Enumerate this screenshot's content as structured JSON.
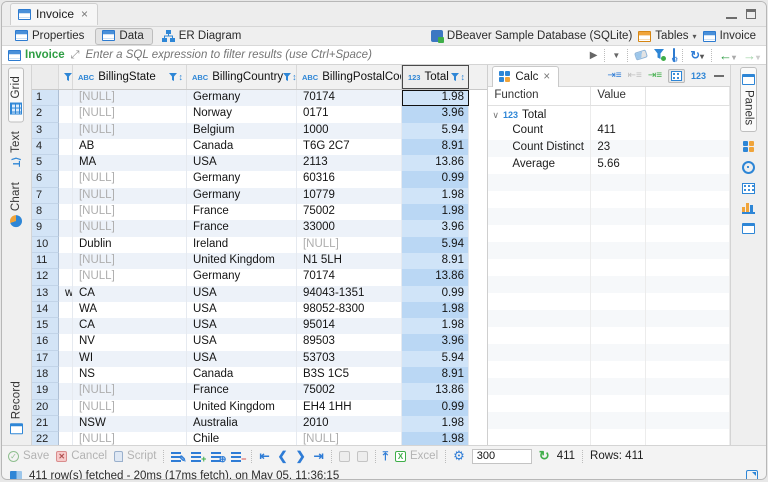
{
  "window": {
    "tab_title": "Invoice",
    "close_glyph": "×"
  },
  "subtabs": {
    "properties": "Properties",
    "data": "Data",
    "er_diagram": "ER Diagram",
    "connection": {
      "database": "DBeaver Sample Database (SQLite)",
      "tables_label": "Tables",
      "table_label": "Invoice"
    }
  },
  "filter_bar": {
    "table": "Invoice",
    "placeholder": "Enter a SQL expression to filter results (use Ctrl+Space)"
  },
  "side_tabs": {
    "grid": "Grid",
    "text": "Text",
    "chart": "Chart",
    "record": "Record"
  },
  "grid": {
    "columns": [
      {
        "name": "",
        "type": ""
      },
      {
        "name": "BillingState",
        "type": "ABC"
      },
      {
        "name": "BillingCountry",
        "type": "ABC"
      },
      {
        "name": "BillingPostalCode",
        "type": "ABC"
      },
      {
        "name": "Total",
        "type": "123",
        "selected": true
      }
    ],
    "rows": [
      {
        "n": "1",
        "pre": "",
        "cells": [
          "[NULL]",
          "Germany",
          "70174",
          "1.98"
        ],
        "focused_total": true
      },
      {
        "n": "2",
        "pre": "",
        "cells": [
          "[NULL]",
          "Norway",
          "0171",
          "3.96"
        ]
      },
      {
        "n": "3",
        "pre": "",
        "cells": [
          "[NULL]",
          "Belgium",
          "1000",
          "5.94"
        ]
      },
      {
        "n": "4",
        "pre": "",
        "cells": [
          "AB",
          "Canada",
          "T6G 2C7",
          "8.91"
        ]
      },
      {
        "n": "5",
        "pre": "",
        "cells": [
          "MA",
          "USA",
          "2113",
          "13.86"
        ]
      },
      {
        "n": "6",
        "pre": "",
        "cells": [
          "[NULL]",
          "Germany",
          "60316",
          "0.99"
        ]
      },
      {
        "n": "7",
        "pre": "",
        "cells": [
          "[NULL]",
          "Germany",
          "10779",
          "1.98"
        ]
      },
      {
        "n": "8",
        "pre": "",
        "cells": [
          "[NULL]",
          "France",
          "75002",
          "1.98"
        ]
      },
      {
        "n": "9",
        "pre": "",
        "cells": [
          "[NULL]",
          "France",
          "33000",
          "3.96"
        ]
      },
      {
        "n": "10",
        "pre": "",
        "cells": [
          "Dublin",
          "Ireland",
          "[NULL]",
          "5.94"
        ]
      },
      {
        "n": "11",
        "pre": "",
        "cells": [
          "[NULL]",
          "United Kingdom",
          "N1 5LH",
          "8.91"
        ]
      },
      {
        "n": "12",
        "pre": "",
        "cells": [
          "[NULL]",
          "Germany",
          "70174",
          "13.86"
        ]
      },
      {
        "n": "13",
        "pre": "w",
        "cells": [
          "CA",
          "USA",
          "94043-1351",
          "0.99"
        ]
      },
      {
        "n": "14",
        "pre": "",
        "cells": [
          "WA",
          "USA",
          "98052-8300",
          "1.98"
        ]
      },
      {
        "n": "15",
        "pre": "",
        "cells": [
          "CA",
          "USA",
          "95014",
          "1.98"
        ]
      },
      {
        "n": "16",
        "pre": "",
        "cells": [
          "NV",
          "USA",
          "89503",
          "3.96"
        ]
      },
      {
        "n": "17",
        "pre": "",
        "cells": [
          "WI",
          "USA",
          "53703",
          "5.94"
        ]
      },
      {
        "n": "18",
        "pre": "",
        "cells": [
          "NS",
          "Canada",
          "B3S 1C5",
          "8.91"
        ]
      },
      {
        "n": "19",
        "pre": "",
        "cells": [
          "[NULL]",
          "France",
          "75002",
          "13.86"
        ]
      },
      {
        "n": "20",
        "pre": "",
        "cells": [
          "[NULL]",
          "United Kingdom",
          "EH4 1HH",
          "0.99"
        ]
      },
      {
        "n": "21",
        "pre": "",
        "cells": [
          "NSW",
          "Australia",
          "2010",
          "1.98"
        ]
      },
      {
        "n": "22",
        "pre": "",
        "cells": [
          "[NULL]",
          "Chile",
          "[NULL]",
          "1.98"
        ]
      }
    ],
    "null_text": "[NULL]"
  },
  "calc_panel": {
    "tab": "Calc",
    "close_glyph": "×",
    "toolbar_123": "123",
    "columns": [
      "Function",
      "Value"
    ],
    "group": {
      "type": "123",
      "label": "Total"
    },
    "rows": [
      {
        "function": "Count",
        "value": "411"
      },
      {
        "function": "Count Distinct",
        "value": "23"
      },
      {
        "function": "Average",
        "value": "5.66"
      }
    ]
  },
  "panels_strip": {
    "label": "Panels"
  },
  "toolbar": {
    "save": "Save",
    "cancel": "Cancel",
    "script": "Script",
    "excel": "Excel",
    "fetch_size": "300",
    "refresh_count": "411",
    "rows_label": "Rows: 411"
  },
  "status_bar": {
    "message": "411 row(s) fetched - 20ms (17ms fetch), on May 05, 11:36:15"
  },
  "colors": {
    "accent": "#2e7cd6",
    "green": "#2f9e44",
    "orange": "#f0a43a",
    "total_col": "#bad7f4"
  }
}
